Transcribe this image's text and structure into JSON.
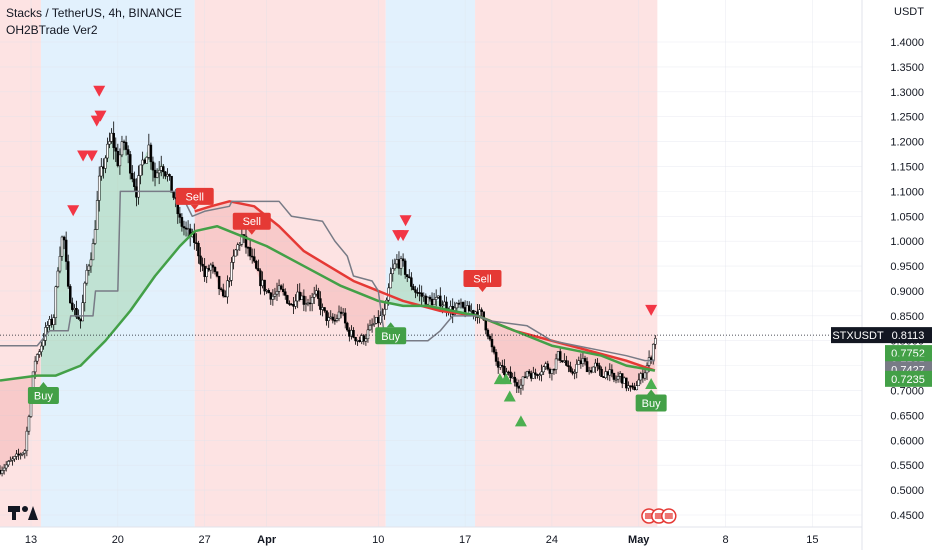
{
  "chart_data": {
    "type": "candlestick",
    "title": "Stacks / TetherUS, 4h, BINANCE",
    "indicator": "OH2BTrade Ver2",
    "currency": "USDT",
    "y_ticks": [
      "1.4000",
      "1.3500",
      "1.3000",
      "1.2500",
      "1.2000",
      "1.1500",
      "1.1000",
      "1.0500",
      "1.0000",
      "0.9500",
      "0.9000",
      "0.8500",
      "0.8000",
      "0.7500",
      "0.7000",
      "0.6500",
      "0.6000",
      "0.5500",
      "0.5000",
      "0.4500"
    ],
    "ylim": [
      0.42,
      1.44
    ],
    "x_ticks": [
      "13",
      "20",
      "27",
      "Apr",
      "10",
      "17",
      "24",
      "May",
      "8",
      "15"
    ],
    "x_tick_days": [
      0,
      7,
      14,
      19,
      28,
      35,
      42,
      49,
      56,
      63
    ],
    "x_range_days": [
      -2.5,
      67
    ],
    "data_end_day": 50.5,
    "background_zones": [
      {
        "from": -2.5,
        "to": 0.8,
        "color": "#fde3e3"
      },
      {
        "from": 0.8,
        "to": 13.2,
        "color": "#e2f1fd"
      },
      {
        "from": 13.2,
        "to": 28.6,
        "color": "#fde3e3"
      },
      {
        "from": 28.6,
        "to": 35.8,
        "color": "#e2f1fd"
      },
      {
        "from": 35.8,
        "to": 50.5,
        "color": "#fde3e3"
      }
    ],
    "price_path": [
      [
        -2.5,
        0.54
      ],
      [
        -1.5,
        0.56
      ],
      [
        -0.5,
        0.58
      ],
      [
        0.3,
        0.76
      ],
      [
        0.8,
        0.79
      ],
      [
        1.3,
        0.83
      ],
      [
        1.8,
        0.84
      ],
      [
        2.2,
        0.96
      ],
      [
        2.6,
        1.02
      ],
      [
        3.0,
        0.9
      ],
      [
        3.5,
        0.86
      ],
      [
        4.0,
        0.84
      ],
      [
        4.5,
        0.94
      ],
      [
        5.0,
        0.99
      ],
      [
        5.5,
        1.12
      ],
      [
        6.0,
        1.17
      ],
      [
        6.5,
        1.21
      ],
      [
        7.0,
        1.16
      ],
      [
        7.5,
        1.2
      ],
      [
        8.0,
        1.15
      ],
      [
        8.5,
        1.1
      ],
      [
        9.0,
        1.16
      ],
      [
        9.5,
        1.19
      ],
      [
        10.0,
        1.13
      ],
      [
        10.5,
        1.16
      ],
      [
        11.0,
        1.13
      ],
      [
        11.5,
        1.09
      ],
      [
        12.0,
        1.04
      ],
      [
        12.5,
        1.02
      ],
      [
        13.2,
        1.0
      ],
      [
        13.6,
        0.97
      ],
      [
        14.0,
        0.93
      ],
      [
        14.5,
        0.95
      ],
      [
        15.0,
        0.92
      ],
      [
        15.5,
        0.88
      ],
      [
        16.0,
        0.93
      ],
      [
        16.5,
        0.98
      ],
      [
        17.0,
        1.01
      ],
      [
        17.5,
        0.98
      ],
      [
        18.0,
        0.95
      ],
      [
        18.5,
        0.92
      ],
      [
        19.0,
        0.9
      ],
      [
        19.5,
        0.89
      ],
      [
        20.0,
        0.9
      ],
      [
        20.5,
        0.89
      ],
      [
        21.0,
        0.87
      ],
      [
        21.5,
        0.9
      ],
      [
        22.0,
        0.88
      ],
      [
        22.5,
        0.88
      ],
      [
        23.0,
        0.89
      ],
      [
        23.5,
        0.86
      ],
      [
        24.0,
        0.84
      ],
      [
        24.5,
        0.84
      ],
      [
        25.0,
        0.86
      ],
      [
        25.5,
        0.82
      ],
      [
        26.0,
        0.81
      ],
      [
        26.5,
        0.8
      ],
      [
        27.0,
        0.81
      ],
      [
        27.5,
        0.83
      ],
      [
        28.0,
        0.84
      ],
      [
        28.6,
        0.86
      ],
      [
        29.0,
        0.93
      ],
      [
        29.5,
        0.96
      ],
      [
        30.0,
        0.95
      ],
      [
        30.5,
        0.92
      ],
      [
        31.0,
        0.9
      ],
      [
        31.5,
        0.89
      ],
      [
        32.0,
        0.88
      ],
      [
        32.5,
        0.88
      ],
      [
        33.0,
        0.88
      ],
      [
        33.5,
        0.87
      ],
      [
        34.0,
        0.86
      ],
      [
        34.5,
        0.87
      ],
      [
        35.0,
        0.86
      ],
      [
        35.8,
        0.86
      ],
      [
        36.4,
        0.85
      ],
      [
        36.8,
        0.82
      ],
      [
        37.2,
        0.78
      ],
      [
        37.6,
        0.75
      ],
      [
        38.0,
        0.74
      ],
      [
        38.5,
        0.73
      ],
      [
        39.0,
        0.72
      ],
      [
        39.5,
        0.71
      ],
      [
        40.0,
        0.74
      ],
      [
        40.5,
        0.73
      ],
      [
        41.0,
        0.74
      ],
      [
        41.5,
        0.75
      ],
      [
        42.0,
        0.74
      ],
      [
        42.5,
        0.77
      ],
      [
        43.0,
        0.76
      ],
      [
        43.5,
        0.73
      ],
      [
        44.0,
        0.75
      ],
      [
        44.5,
        0.76
      ],
      [
        45.0,
        0.74
      ],
      [
        45.5,
        0.75
      ],
      [
        46.0,
        0.73
      ],
      [
        46.5,
        0.74
      ],
      [
        47.0,
        0.72
      ],
      [
        47.5,
        0.73
      ],
      [
        48.0,
        0.71
      ],
      [
        48.5,
        0.7
      ],
      [
        49.0,
        0.72
      ],
      [
        49.5,
        0.74
      ],
      [
        50.0,
        0.77
      ],
      [
        50.3,
        0.81
      ]
    ],
    "series": [
      {
        "name": "red-ma",
        "color": "#e53935",
        "width": 2.5,
        "points": [
          [
            13.2,
            1.06
          ],
          [
            14.5,
            1.07
          ],
          [
            16.0,
            1.08
          ],
          [
            18.0,
            1.07
          ],
          [
            20.0,
            1.03
          ],
          [
            22.0,
            0.98
          ],
          [
            24.0,
            0.95
          ],
          [
            26.0,
            0.92
          ],
          [
            28.0,
            0.9
          ],
          [
            30.0,
            0.88
          ],
          [
            33.0,
            0.86
          ],
          [
            36.0,
            0.85
          ],
          [
            39.0,
            0.82
          ],
          [
            42.0,
            0.8
          ],
          [
            45.0,
            0.78
          ],
          [
            48.0,
            0.76
          ],
          [
            50.3,
            0.74
          ]
        ]
      },
      {
        "name": "green-ma",
        "color": "#43a047",
        "width": 2.5,
        "points": [
          [
            -2.5,
            0.72
          ],
          [
            0.5,
            0.73
          ],
          [
            2.0,
            0.73
          ],
          [
            4.0,
            0.75
          ],
          [
            6.0,
            0.8
          ],
          [
            8.0,
            0.86
          ],
          [
            10.0,
            0.93
          ],
          [
            12.0,
            0.99
          ],
          [
            13.2,
            1.02
          ],
          [
            15.0,
            1.03
          ],
          [
            17.0,
            1.01
          ],
          [
            19.0,
            0.99
          ],
          [
            22.0,
            0.95
          ],
          [
            25.0,
            0.91
          ],
          [
            28.0,
            0.88
          ],
          [
            30.0,
            0.87
          ],
          [
            32.0,
            0.87
          ],
          [
            34.0,
            0.86
          ],
          [
            36.0,
            0.85
          ],
          [
            38.0,
            0.83
          ],
          [
            40.0,
            0.81
          ],
          [
            42.0,
            0.79
          ],
          [
            44.0,
            0.78
          ],
          [
            46.0,
            0.77
          ],
          [
            48.0,
            0.75
          ],
          [
            50.3,
            0.74
          ]
        ]
      },
      {
        "name": "grey-line",
        "color": "#787b86",
        "width": 1.5,
        "points": [
          [
            -2.5,
            0.79
          ],
          [
            0.5,
            0.79
          ],
          [
            1.5,
            0.82
          ],
          [
            3.0,
            0.82
          ],
          [
            3.2,
            0.85
          ],
          [
            5.0,
            0.85
          ],
          [
            5.2,
            0.9
          ],
          [
            7.0,
            0.9
          ],
          [
            7.2,
            1.1
          ],
          [
            12.0,
            1.1
          ],
          [
            13.0,
            1.05
          ],
          [
            14.0,
            1.06
          ],
          [
            16.0,
            1.07
          ],
          [
            16.2,
            1.08
          ],
          [
            20.0,
            1.08
          ],
          [
            21.0,
            1.05
          ],
          [
            23.5,
            1.04
          ],
          [
            24.5,
            1.0
          ],
          [
            25.5,
            0.97
          ],
          [
            26.0,
            0.93
          ],
          [
            27.5,
            0.92
          ],
          [
            28.0,
            0.9
          ],
          [
            28.5,
            0.81
          ],
          [
            29.0,
            0.8
          ],
          [
            32.0,
            0.8
          ],
          [
            33.0,
            0.82
          ],
          [
            34.0,
            0.85
          ],
          [
            36.0,
            0.85
          ],
          [
            37.0,
            0.84
          ],
          [
            40.0,
            0.83
          ],
          [
            42.0,
            0.8
          ],
          [
            44.0,
            0.79
          ],
          [
            46.0,
            0.78
          ],
          [
            48.0,
            0.77
          ],
          [
            49.5,
            0.76
          ],
          [
            50.3,
            0.76
          ]
        ]
      }
    ],
    "last_price": "0.8113",
    "symbol": "STXUSDT",
    "price_labels": [
      {
        "text": "0.7752",
        "value": 0.7752,
        "color": "#43a047"
      },
      {
        "text": "0.7525",
        "value": 0.7525,
        "color": "#43a047"
      },
      {
        "text": "0.7427",
        "value": 0.7427,
        "color": "#787b86"
      },
      {
        "text": "0.7235",
        "value": 0.7235,
        "color": "#43a047"
      }
    ],
    "signals": [
      {
        "label": "Buy",
        "day": 1.0,
        "price": 0.69,
        "color": "#43a047"
      },
      {
        "label": "Sell",
        "day": 13.2,
        "price": 1.09,
        "color": "#e53935"
      },
      {
        "label": "Sell",
        "day": 17.8,
        "price": 1.04,
        "color": "#e53935"
      },
      {
        "label": "Buy",
        "day": 29.0,
        "price": 0.81,
        "color": "#43a047"
      },
      {
        "label": "Sell",
        "day": 36.4,
        "price": 0.925,
        "color": "#e53935"
      },
      {
        "label": "Buy",
        "day": 50.0,
        "price": 0.675,
        "color": "#43a047"
      }
    ],
    "down_arrows": [
      [
        3.4,
        1.06
      ],
      [
        4.2,
        1.17
      ],
      [
        5.5,
        1.3
      ],
      [
        5.3,
        1.24
      ],
      [
        4.9,
        1.17
      ],
      [
        5.6,
        1.25
      ],
      [
        30.2,
        1.04
      ],
      [
        29.6,
        1.01
      ],
      [
        30.0,
        1.01
      ],
      [
        50.0,
        0.86
      ]
    ],
    "up_arrows": [
      [
        37.8,
        0.725
      ],
      [
        38.3,
        0.725
      ],
      [
        38.6,
        0.69
      ],
      [
        39.5,
        0.64
      ],
      [
        50.0,
        0.715
      ]
    ],
    "watermark": "TradingView"
  }
}
